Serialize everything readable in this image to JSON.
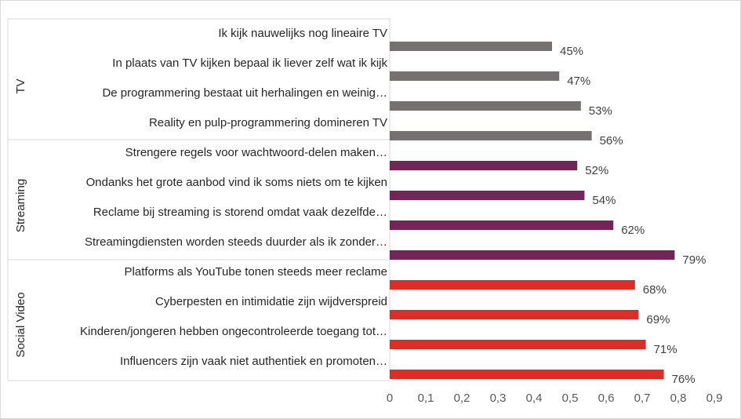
{
  "chart_data": {
    "type": "bar",
    "orientation": "horizontal",
    "title": "",
    "xlabel": "",
    "ylabel": "",
    "xlim": [
      0,
      0.9
    ],
    "ticks": [
      "0",
      "0,1",
      "0,2",
      "0,3",
      "0,4",
      "0,5",
      "0,6",
      "0,7",
      "0,8",
      "0,9"
    ],
    "tick_values": [
      0,
      0.1,
      0.2,
      0.3,
      0.4,
      0.5,
      0.6,
      0.7,
      0.8,
      0.9
    ],
    "grid": false,
    "groups": [
      {
        "name": "TV",
        "color": "#767171",
        "categories": [
          "Ik kijk nauwelijks nog lineaire TV",
          "In plaats van TV kijken bepaal ik liever zelf wat ik kijk",
          "De programmering bestaat uit herhalingen en weinig…",
          "Reality en pulp-programmering domineren TV"
        ],
        "values": [
          0.45,
          0.47,
          0.53,
          0.56
        ],
        "labels": [
          "45%",
          "47%",
          "53%",
          "56%"
        ]
      },
      {
        "name": "Streaming",
        "color": "#722657",
        "categories": [
          "Strengere regels voor wachtwoord-delen maken…",
          "Ondanks het grote aanbod vind ik soms niets om te kijken",
          "Reclame bij streaming is storend omdat vaak dezelfde…",
          "Streamingdiensten worden steeds duurder als ik zonder…"
        ],
        "values": [
          0.52,
          0.54,
          0.62,
          0.79
        ],
        "labels": [
          "52%",
          "54%",
          "62%",
          "79%"
        ]
      },
      {
        "name": "Social Video",
        "color": "#dc2d27",
        "categories": [
          "Platforms als YouTube tonen steeds meer reclame",
          "Cyberpesten en intimidatie zijn wijdverspreid",
          "Kinderen/jongeren hebben ongecontroleerde toegang tot…",
          "Influencers zijn vaak niet authentiek en promoten…"
        ],
        "values": [
          0.68,
          0.69,
          0.71,
          0.76
        ],
        "labels": [
          "68%",
          "69%",
          "71%",
          "76%"
        ]
      }
    ]
  }
}
